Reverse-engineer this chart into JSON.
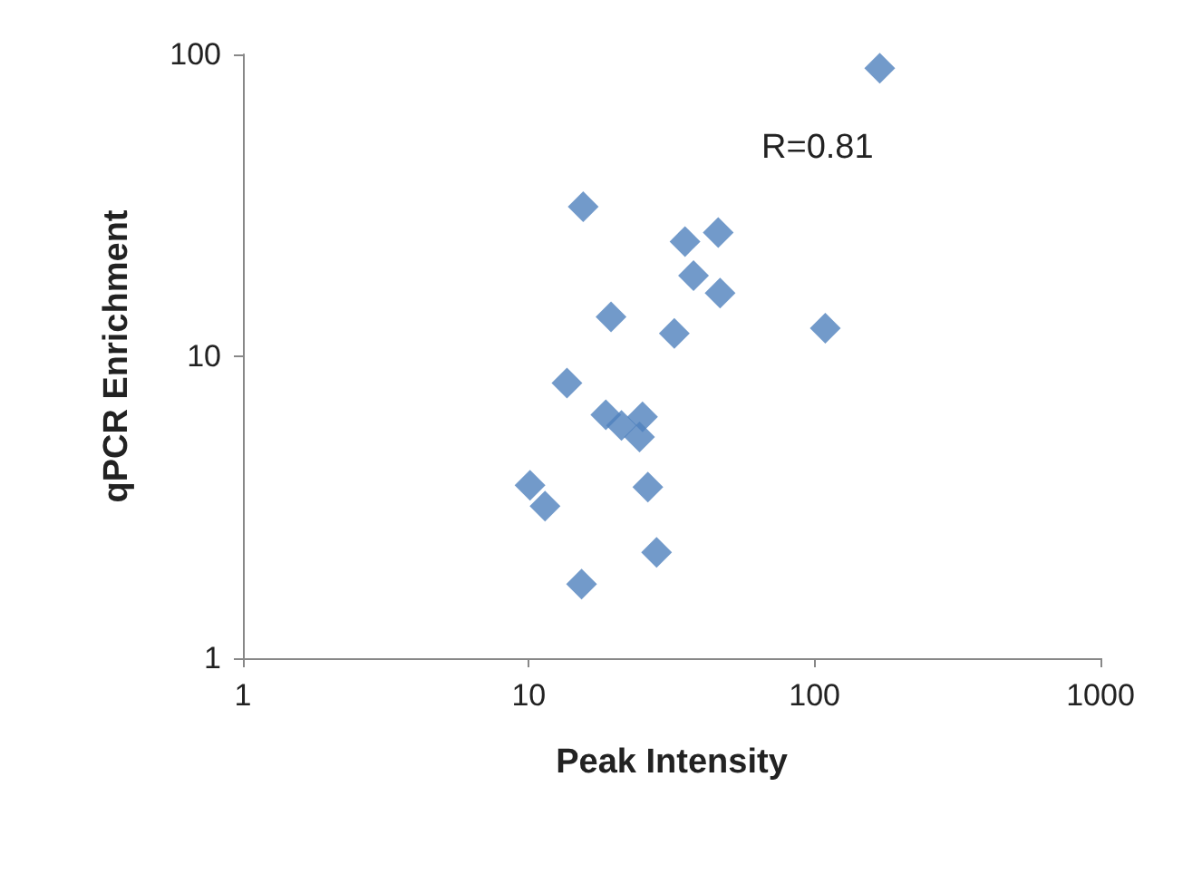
{
  "chart_data": {
    "type": "scatter",
    "xlabel": "Peak Intensity",
    "ylabel": "qPCR Enrichment",
    "annotations": [
      "R=0.81"
    ],
    "x": [
      169,
      15.5,
      35.2,
      46,
      37.7,
      46.7,
      19.4,
      32.3,
      109,
      13.6,
      18.6,
      21.1,
      25,
      24.4,
      10.1,
      11.4,
      26.1,
      28,
      15.3
    ],
    "series": [
      {
        "color": "#4f81bd",
        "values": [
          90,
          31.3,
          24,
          25.7,
          18.5,
          16.2,
          13.5,
          11.9,
          12.4,
          8.15,
          6.4,
          5.9,
          6.3,
          5.4,
          3.74,
          3.19,
          3.69,
          2.24,
          1.76
        ]
      }
    ],
    "xlim": [
      1,
      1000
    ],
    "xticks": [
      1,
      10,
      100,
      1000
    ],
    "ylim": [
      1,
      100
    ],
    "yticks": [
      1,
      10,
      100
    ],
    "log": "xy",
    "grid": false,
    "marker": "diamond"
  }
}
